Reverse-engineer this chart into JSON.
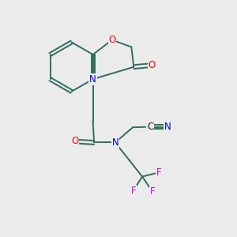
{
  "background_color": "#ebebeb",
  "bond_color": "#2d6e5e",
  "atom_colors": {
    "O": "#ff0000",
    "N": "#0000cc",
    "C": "#1a1a1a",
    "F": "#cc00cc"
  },
  "figsize": [
    3.0,
    3.0
  ],
  "dpi": 100
}
